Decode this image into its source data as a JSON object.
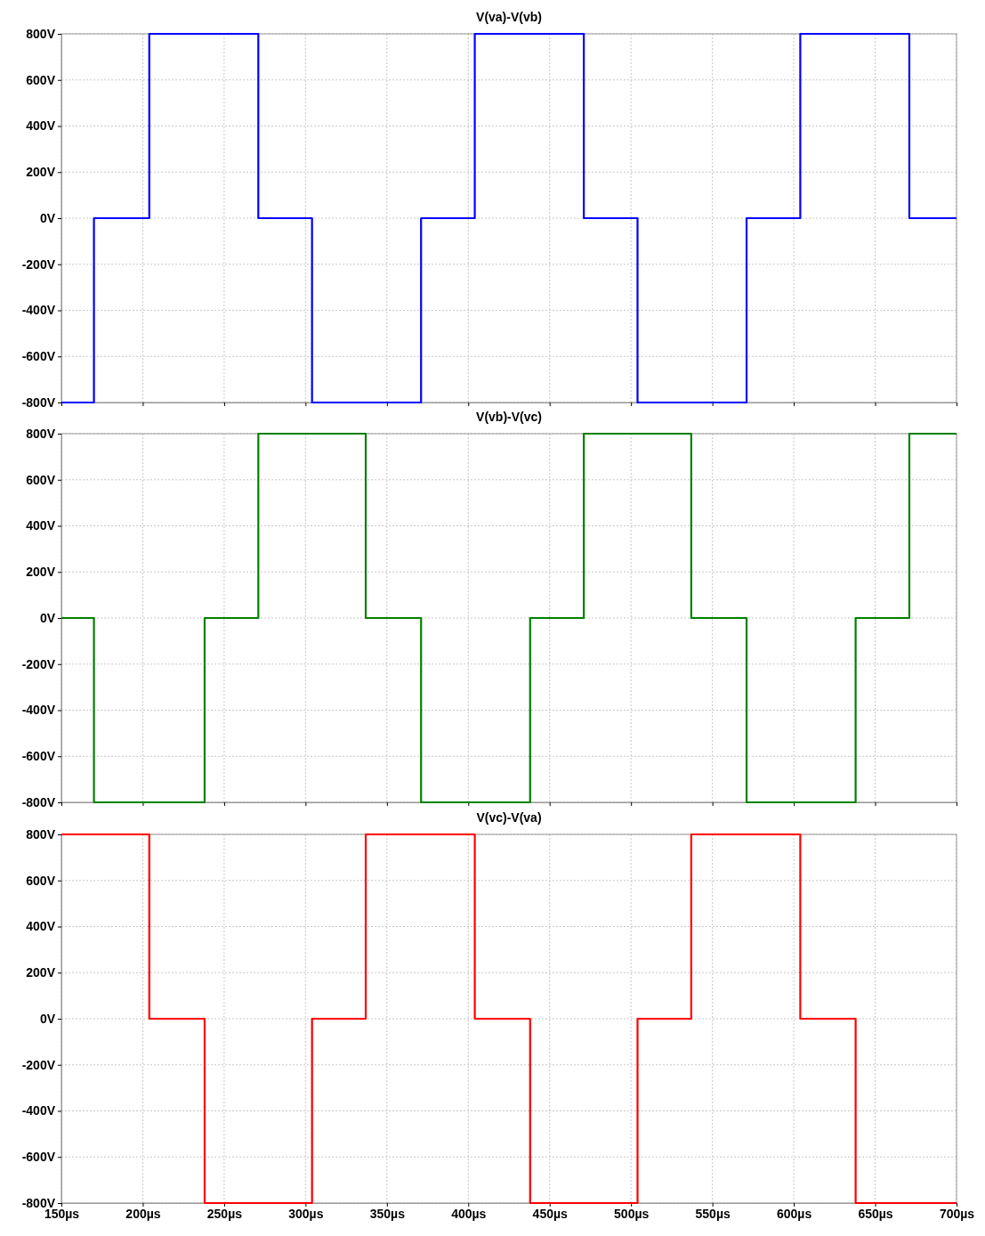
{
  "chart_data": [
    {
      "type": "step",
      "title": "V(va)-V(vb)",
      "x": [
        150,
        170,
        204,
        271,
        304,
        371,
        404,
        471,
        504,
        571,
        604,
        671,
        700
      ],
      "series": [
        {
          "color": "#0000ff",
          "values": [
            -800,
            0,
            800,
            0,
            -800,
            0,
            800,
            0,
            -800,
            0,
            800,
            0,
            0
          ]
        }
      ],
      "xlim": [
        150,
        700
      ],
      "xticks": [
        {
          "value": 150,
          "label": null
        },
        {
          "value": 200,
          "label": null
        },
        {
          "value": 250,
          "label": null
        },
        {
          "value": 300,
          "label": null
        },
        {
          "value": 350,
          "label": null
        },
        {
          "value": 400,
          "label": null
        },
        {
          "value": 450,
          "label": null
        },
        {
          "value": 500,
          "label": null
        },
        {
          "value": 550,
          "label": null
        },
        {
          "value": 600,
          "label": null
        },
        {
          "value": 650,
          "label": null
        },
        {
          "value": 700,
          "label": null
        }
      ],
      "ylim": [
        -800,
        800
      ],
      "yticks": [
        {
          "value": -800,
          "label": "-800V"
        },
        {
          "value": -600,
          "label": "-600V"
        },
        {
          "value": -400,
          "label": "-400V"
        },
        {
          "value": -200,
          "label": "-200V"
        },
        {
          "value": 0,
          "label": "0V"
        },
        {
          "value": 200,
          "label": "200V"
        },
        {
          "value": 400,
          "label": "400V"
        },
        {
          "value": 600,
          "label": "600V"
        },
        {
          "value": 800,
          "label": "800V"
        }
      ],
      "grid": true,
      "tick_labels": "y"
    },
    {
      "type": "step",
      "title": "V(vb)-V(vc)",
      "x": [
        150,
        170,
        238,
        271,
        337,
        371,
        438,
        471,
        537,
        571,
        638,
        671,
        700
      ],
      "series": [
        {
          "color": "#008000",
          "values": [
            0,
            -800,
            0,
            800,
            0,
            -800,
            0,
            800,
            0,
            -800,
            0,
            800,
            800
          ]
        }
      ],
      "xlim": [
        150,
        700
      ],
      "xticks": [
        {
          "value": 150,
          "label": null
        },
        {
          "value": 200,
          "label": null
        },
        {
          "value": 250,
          "label": null
        },
        {
          "value": 300,
          "label": null
        },
        {
          "value": 350,
          "label": null
        },
        {
          "value": 400,
          "label": null
        },
        {
          "value": 450,
          "label": null
        },
        {
          "value": 500,
          "label": null
        },
        {
          "value": 550,
          "label": null
        },
        {
          "value": 600,
          "label": null
        },
        {
          "value": 650,
          "label": null
        },
        {
          "value": 700,
          "label": null
        }
      ],
      "ylim": [
        -800,
        800
      ],
      "yticks": [
        {
          "value": -800,
          "label": "-800V"
        },
        {
          "value": -600,
          "label": "-600V"
        },
        {
          "value": -400,
          "label": "-400V"
        },
        {
          "value": -200,
          "label": "-200V"
        },
        {
          "value": 0,
          "label": "0V"
        },
        {
          "value": 200,
          "label": "200V"
        },
        {
          "value": 400,
          "label": "400V"
        },
        {
          "value": 600,
          "label": "600V"
        },
        {
          "value": 800,
          "label": "800V"
        }
      ],
      "grid": true,
      "tick_labels": "y"
    },
    {
      "type": "step",
      "title": "V(vc)-V(va)",
      "x": [
        150,
        204,
        238,
        304,
        337,
        404,
        438,
        504,
        537,
        604,
        638,
        700
      ],
      "series": [
        {
          "color": "#ff0000",
          "values": [
            800,
            0,
            -800,
            0,
            800,
            0,
            -800,
            0,
            800,
            0,
            -800,
            -800
          ]
        }
      ],
      "xlim": [
        150,
        700
      ],
      "xticks": [
        {
          "value": 150,
          "label": "150µs"
        },
        {
          "value": 200,
          "label": "200µs"
        },
        {
          "value": 250,
          "label": "250µs"
        },
        {
          "value": 300,
          "label": "300µs"
        },
        {
          "value": 350,
          "label": "350µs"
        },
        {
          "value": 400,
          "label": "400µs"
        },
        {
          "value": 450,
          "label": "450µs"
        },
        {
          "value": 500,
          "label": "500µs"
        },
        {
          "value": 550,
          "label": "550µs"
        },
        {
          "value": 600,
          "label": "600µs"
        },
        {
          "value": 650,
          "label": "650µs"
        },
        {
          "value": 700,
          "label": "700µs"
        }
      ],
      "ylim": [
        -800,
        800
      ],
      "yticks": [
        {
          "value": -800,
          "label": "-800V"
        },
        {
          "value": -600,
          "label": "-600V"
        },
        {
          "value": -400,
          "label": "-400V"
        },
        {
          "value": -200,
          "label": "-200V"
        },
        {
          "value": 0,
          "label": "0V"
        },
        {
          "value": 200,
          "label": "200V"
        },
        {
          "value": 400,
          "label": "400V"
        },
        {
          "value": 600,
          "label": "600V"
        },
        {
          "value": 800,
          "label": "800V"
        }
      ],
      "grid": true
    }
  ]
}
